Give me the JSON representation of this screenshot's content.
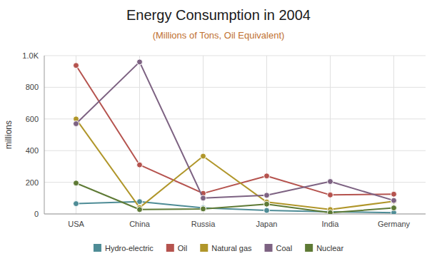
{
  "chart_data": {
    "type": "line",
    "title": "Energy Consumption in 2004",
    "subtitle": "(Millions of Tons, Oil Equivalent)",
    "ylabel": "millions",
    "categories": [
      "USA",
      "China",
      "Russia",
      "Japan",
      "India",
      "Germany"
    ],
    "series": [
      {
        "name": "Hydro-electric",
        "color": "#4e8c96",
        "values": [
          65,
          78,
          38,
          22,
          14,
          8
        ]
      },
      {
        "name": "Oil",
        "color": "#b5534e",
        "values": [
          938,
          310,
          130,
          240,
          120,
          125
        ]
      },
      {
        "name": "Natural gas",
        "color": "#b0962a",
        "values": [
          600,
          40,
          365,
          75,
          28,
          80
        ]
      },
      {
        "name": "Coal",
        "color": "#7d6282",
        "values": [
          570,
          960,
          100,
          118,
          205,
          85
        ]
      },
      {
        "name": "Nuclear",
        "color": "#5e7a35",
        "values": [
          195,
          28,
          32,
          62,
          8,
          38
        ]
      }
    ],
    "ylim": [
      0,
      1000
    ],
    "yticks": [
      0,
      200,
      400,
      600,
      800,
      {
        "value": 1000,
        "label": "1.0K"
      }
    ],
    "grid": true,
    "legend": "bottom",
    "marker": "circle"
  }
}
